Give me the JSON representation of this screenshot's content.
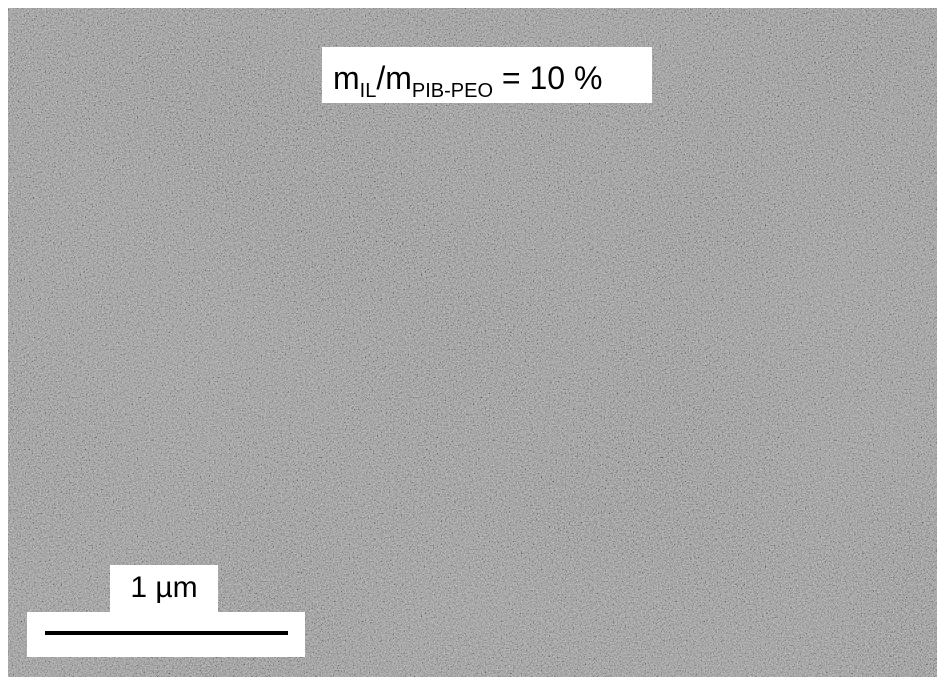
{
  "annotation": {
    "symbol": "m",
    "subscript_1": "IL",
    "separator": "/m",
    "subscript_2": "PIB-PEO",
    "equation": " = 10 %"
  },
  "scale_bar": {
    "label": "1 µm"
  }
}
